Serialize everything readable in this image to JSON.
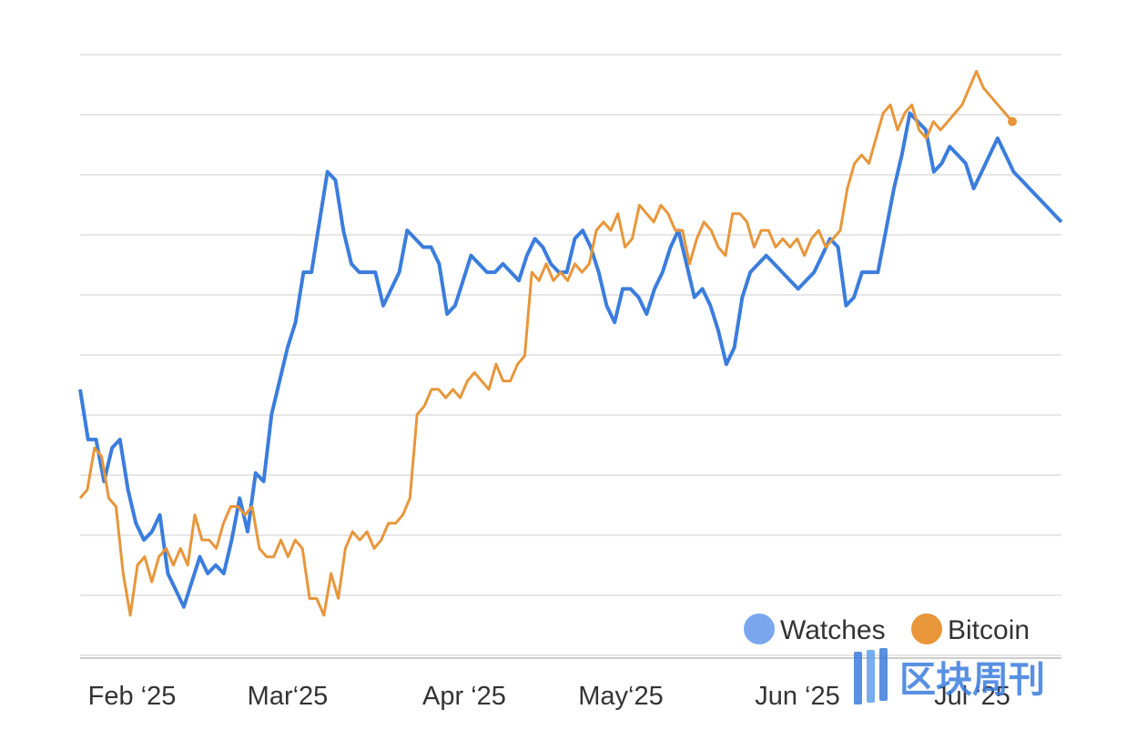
{
  "chart_data": {
    "type": "line",
    "title": "",
    "xlabel": "",
    "ylabel": "",
    "x_ticks": [
      "Feb ‘25",
      "Mar‘25",
      "Apr ‘25",
      "May‘25",
      "Jun ‘25",
      "Jul ‘25"
    ],
    "grid": true,
    "legend_position": "bottom-right",
    "series": [
      {
        "name": "Watches",
        "color": "#3b7ddd",
        "legend_color": "#7aa6ee",
        "values": [
          0.52,
          0.46,
          0.46,
          0.41,
          0.45,
          0.46,
          0.4,
          0.36,
          0.34,
          0.35,
          0.37,
          0.3,
          0.28,
          0.26,
          0.29,
          0.32,
          0.3,
          0.31,
          0.3,
          0.34,
          0.39,
          0.35,
          0.42,
          0.41,
          0.49,
          0.53,
          0.57,
          0.6,
          0.66,
          0.66,
          0.72,
          0.78,
          0.77,
          0.71,
          0.67,
          0.66,
          0.66,
          0.66,
          0.62,
          0.64,
          0.66,
          0.71,
          0.7,
          0.69,
          0.69,
          0.67,
          0.61,
          0.62,
          0.65,
          0.68,
          0.67,
          0.66,
          0.66,
          0.67,
          0.66,
          0.65,
          0.68,
          0.7,
          0.69,
          0.67,
          0.66,
          0.66,
          0.7,
          0.71,
          0.69,
          0.66,
          0.62,
          0.6,
          0.64,
          0.64,
          0.63,
          0.61,
          0.64,
          0.66,
          0.69,
          0.71,
          0.67,
          0.63,
          0.64,
          0.62,
          0.59,
          0.55,
          0.57,
          0.63,
          0.66,
          0.67,
          0.68,
          0.67,
          0.66,
          0.65,
          0.64,
          0.65,
          0.66,
          0.68,
          0.7,
          0.69,
          0.62,
          0.63,
          0.66,
          0.66,
          0.66,
          0.71,
          0.76,
          0.8,
          0.85,
          0.84,
          0.83,
          0.78,
          0.79,
          0.81,
          0.8,
          0.79,
          0.76,
          0.78,
          0.8,
          0.82,
          0.8,
          0.78,
          0.77,
          0.76,
          0.75,
          0.74,
          0.73,
          0.72
        ]
      },
      {
        "name": "Bitcoin",
        "color": "#e8963a",
        "legend_color": "#e8963a",
        "values": [
          0.39,
          0.4,
          0.45,
          0.44,
          0.39,
          0.38,
          0.3,
          0.25,
          0.31,
          0.32,
          0.29,
          0.32,
          0.33,
          0.31,
          0.33,
          0.31,
          0.37,
          0.34,
          0.34,
          0.33,
          0.36,
          0.38,
          0.38,
          0.37,
          0.38,
          0.33,
          0.32,
          0.32,
          0.34,
          0.32,
          0.34,
          0.33,
          0.27,
          0.27,
          0.25,
          0.3,
          0.27,
          0.33,
          0.35,
          0.34,
          0.35,
          0.33,
          0.34,
          0.36,
          0.36,
          0.37,
          0.39,
          0.49,
          0.5,
          0.52,
          0.52,
          0.51,
          0.52,
          0.51,
          0.53,
          0.54,
          0.53,
          0.52,
          0.55,
          0.53,
          0.53,
          0.55,
          0.56,
          0.66,
          0.65,
          0.67,
          0.65,
          0.66,
          0.65,
          0.67,
          0.66,
          0.67,
          0.71,
          0.72,
          0.71,
          0.73,
          0.69,
          0.7,
          0.74,
          0.73,
          0.72,
          0.74,
          0.73,
          0.71,
          0.71,
          0.67,
          0.7,
          0.72,
          0.71,
          0.69,
          0.68,
          0.73,
          0.73,
          0.72,
          0.69,
          0.71,
          0.71,
          0.69,
          0.7,
          0.69,
          0.7,
          0.68,
          0.7,
          0.71,
          0.69,
          0.7,
          0.71,
          0.76,
          0.79,
          0.8,
          0.79,
          0.82,
          0.85,
          0.86,
          0.83,
          0.85,
          0.86,
          0.83,
          0.82,
          0.84,
          0.83,
          0.84,
          0.85,
          0.86,
          0.88,
          0.9,
          0.88,
          0.87,
          0.86,
          0.85,
          0.84
        ]
      }
    ]
  },
  "watermark": {
    "text": "区块周刊",
    "color": "#3b7ddd"
  }
}
